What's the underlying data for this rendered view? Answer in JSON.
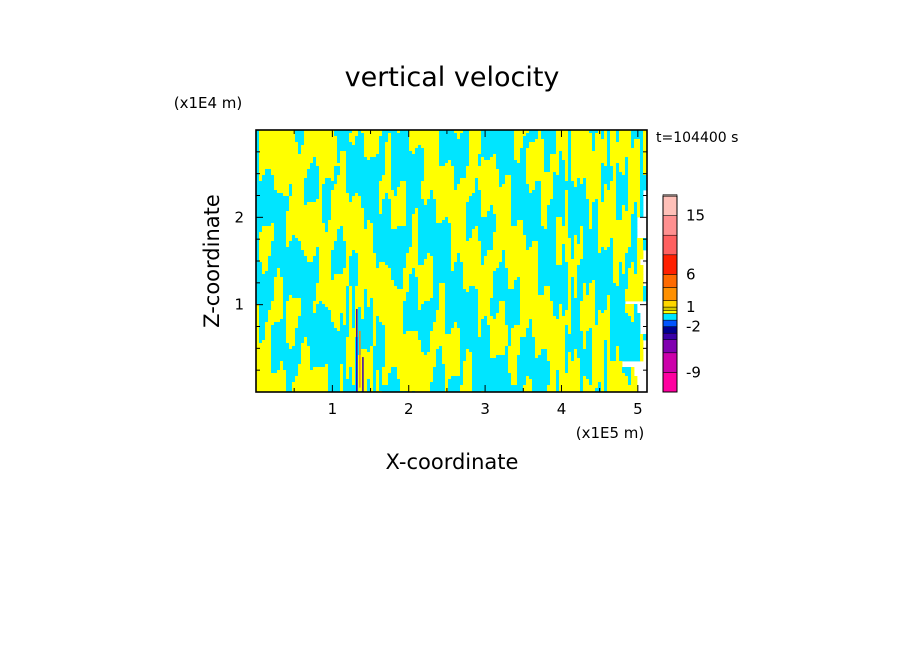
{
  "chart_data": {
    "type": "heatmap",
    "title": "vertical velocity",
    "xlabel": "X-coordinate",
    "ylabel": "Z-coordinate",
    "x_scale_label": "(x1E5 m)",
    "y_scale_label": "(x1E4 m)",
    "time_label": "t=104400 s",
    "xlim": [
      0,
      5.12
    ],
    "ylim": [
      0,
      3.0
    ],
    "x_ticks": [
      1,
      2,
      3,
      4,
      5
    ],
    "y_ticks": [
      1,
      2
    ],
    "x_tick_labels": [
      "1",
      "2",
      "3",
      "4",
      "5"
    ],
    "y_tick_labels": [
      "1",
      "2"
    ],
    "field_colors": {
      "positive": "#ffff00",
      "negative": "#00e5ff",
      "strong_updraft": "#ff8a00",
      "strong_downdraft": "#3b00b3"
    },
    "colorbar": {
      "tick_labels": [
        "15",
        "6",
        "1",
        "-2",
        "-9"
      ],
      "tick_values": [
        15,
        6,
        1,
        -2,
        -9
      ],
      "levels": [
        {
          "value": -12,
          "color": "#ff00a0"
        },
        {
          "value": -9,
          "color": "#cc00aa"
        },
        {
          "value": -6,
          "color": "#8000b0"
        },
        {
          "value": -4,
          "color": "#3a00a8"
        },
        {
          "value": -3,
          "color": "#000090"
        },
        {
          "value": -2,
          "color": "#0055ff"
        },
        {
          "value": -1,
          "color": "#00e5ff"
        },
        {
          "value": 0,
          "color": "#ffff00"
        },
        {
          "value": 0.5,
          "color": "#d4c800"
        },
        {
          "value": 1,
          "color": "#ffd700"
        },
        {
          "value": 2,
          "color": "#ff9000"
        },
        {
          "value": 4,
          "color": "#ff6a00"
        },
        {
          "value": 6,
          "color": "#ff2000"
        },
        {
          "value": 9,
          "color": "#ff6060"
        },
        {
          "value": 12,
          "color": "#ff9090"
        },
        {
          "value": 15,
          "color": "#ffc0b8"
        },
        {
          "value": 18,
          "color": "#ffe8e0"
        }
      ]
    }
  }
}
